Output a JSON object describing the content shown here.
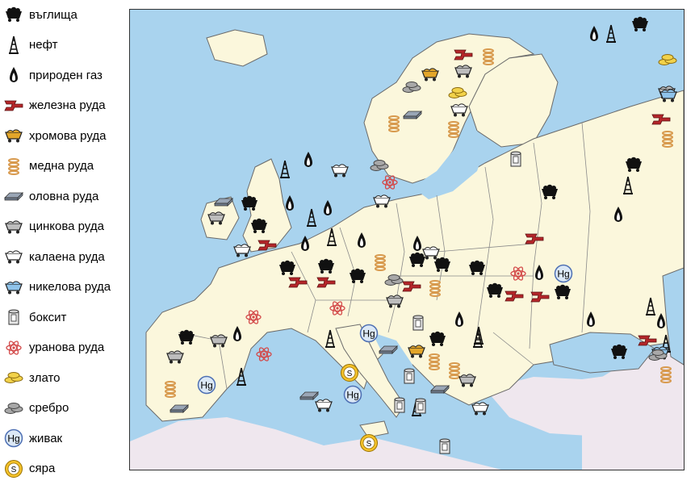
{
  "legend": {
    "items": [
      {
        "key": "coal",
        "label": "въглища"
      },
      {
        "key": "oil",
        "label": "нефт"
      },
      {
        "key": "gas",
        "label": "природен газ"
      },
      {
        "key": "iron",
        "label": "железна руда"
      },
      {
        "key": "chrome",
        "label": "хромова руда"
      },
      {
        "key": "copper",
        "label": "медна руда"
      },
      {
        "key": "lead",
        "label": "оловна руда"
      },
      {
        "key": "zinc",
        "label": "цинкова руда"
      },
      {
        "key": "tin",
        "label": "калаена руда"
      },
      {
        "key": "nickel",
        "label": "никелова руда"
      },
      {
        "key": "bauxite",
        "label": "боксит"
      },
      {
        "key": "uranium",
        "label": "уранова руда"
      },
      {
        "key": "gold",
        "label": "злато"
      },
      {
        "key": "silver",
        "label": "сребро"
      },
      {
        "key": "mercury",
        "label": "живак"
      },
      {
        "key": "sulfur",
        "label": "сяра"
      }
    ]
  },
  "symbols": {
    "mercury_text": "Hg",
    "sulfur_text": "S"
  },
  "colors": {
    "sea": "#a9d3ee",
    "land_europe": "#fbf7dc",
    "land_other": "#efe7ee",
    "border": "#6a6a6a",
    "coal": "#111111",
    "iron": "#b5262a",
    "chrome": "#e3a62a",
    "copper": "#d89a4e",
    "lead": "#9aa6b6",
    "nickel": "#8fc3ea",
    "uranium": "#d34a4a",
    "gold": "#f2d24a",
    "silver": "#a8a8a8",
    "sulfur": "#f3c12a",
    "mercury": "#4d6fb3"
  }
}
